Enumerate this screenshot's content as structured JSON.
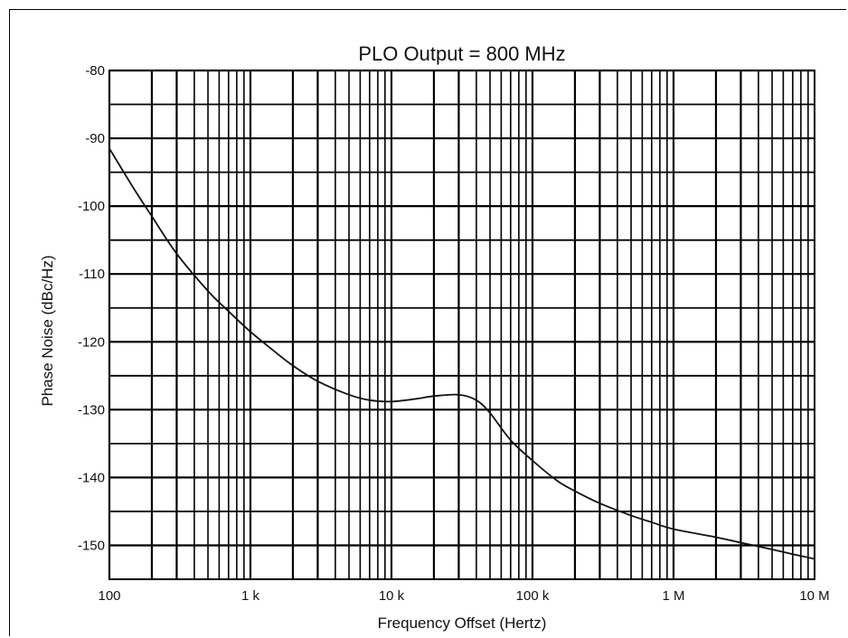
{
  "chart_data": {
    "type": "line",
    "title": "PLO Output = 800 MHz",
    "xlabel": "Frequency Offset (Hertz)",
    "ylabel": "Phase Noise (dBc/Hz)",
    "x_scale": "log",
    "xlim": [
      100,
      10000000
    ],
    "ylim": [
      -155,
      -80
    ],
    "grid": true,
    "x_ticks": [
      {
        "value": 100,
        "label": "100"
      },
      {
        "value": 1000,
        "label": "1 k"
      },
      {
        "value": 10000,
        "label": "10 k"
      },
      {
        "value": 100000,
        "label": "100 k"
      },
      {
        "value": 1000000,
        "label": "1 M"
      },
      {
        "value": 10000000,
        "label": "10 M"
      }
    ],
    "y_ticks": [
      {
        "value": -80,
        "label": "-80"
      },
      {
        "value": -90,
        "label": "-90"
      },
      {
        "value": -100,
        "label": "-100"
      },
      {
        "value": -110,
        "label": "-110"
      },
      {
        "value": -120,
        "label": "-120"
      },
      {
        "value": -130,
        "label": "-130"
      },
      {
        "value": -140,
        "label": "-140"
      },
      {
        "value": -150,
        "label": "-150"
      }
    ],
    "series": [
      {
        "color": "#111111",
        "x": [
          100,
          150,
          200,
          300,
          500,
          700,
          1000,
          1500,
          2000,
          3000,
          5000,
          7000,
          10000,
          15000,
          20000,
          30000,
          40000,
          50000,
          70000,
          100000,
          150000,
          200000,
          300000,
          500000,
          700000,
          1000000,
          2000000,
          3000000,
          5000000,
          7000000,
          10000000
        ],
        "y": [
          -91.5,
          -97.5,
          -101.5,
          -107,
          -112.5,
          -115.5,
          -118.5,
          -121.5,
          -123.5,
          -125.8,
          -127.8,
          -128.6,
          -128.8,
          -128.4,
          -128.0,
          -127.8,
          -128.6,
          -130.5,
          -134.5,
          -137.5,
          -140.5,
          -142.0,
          -143.8,
          -145.6,
          -146.6,
          -147.6,
          -148.8,
          -149.6,
          -150.6,
          -151.3,
          -152.0
        ]
      }
    ]
  }
}
